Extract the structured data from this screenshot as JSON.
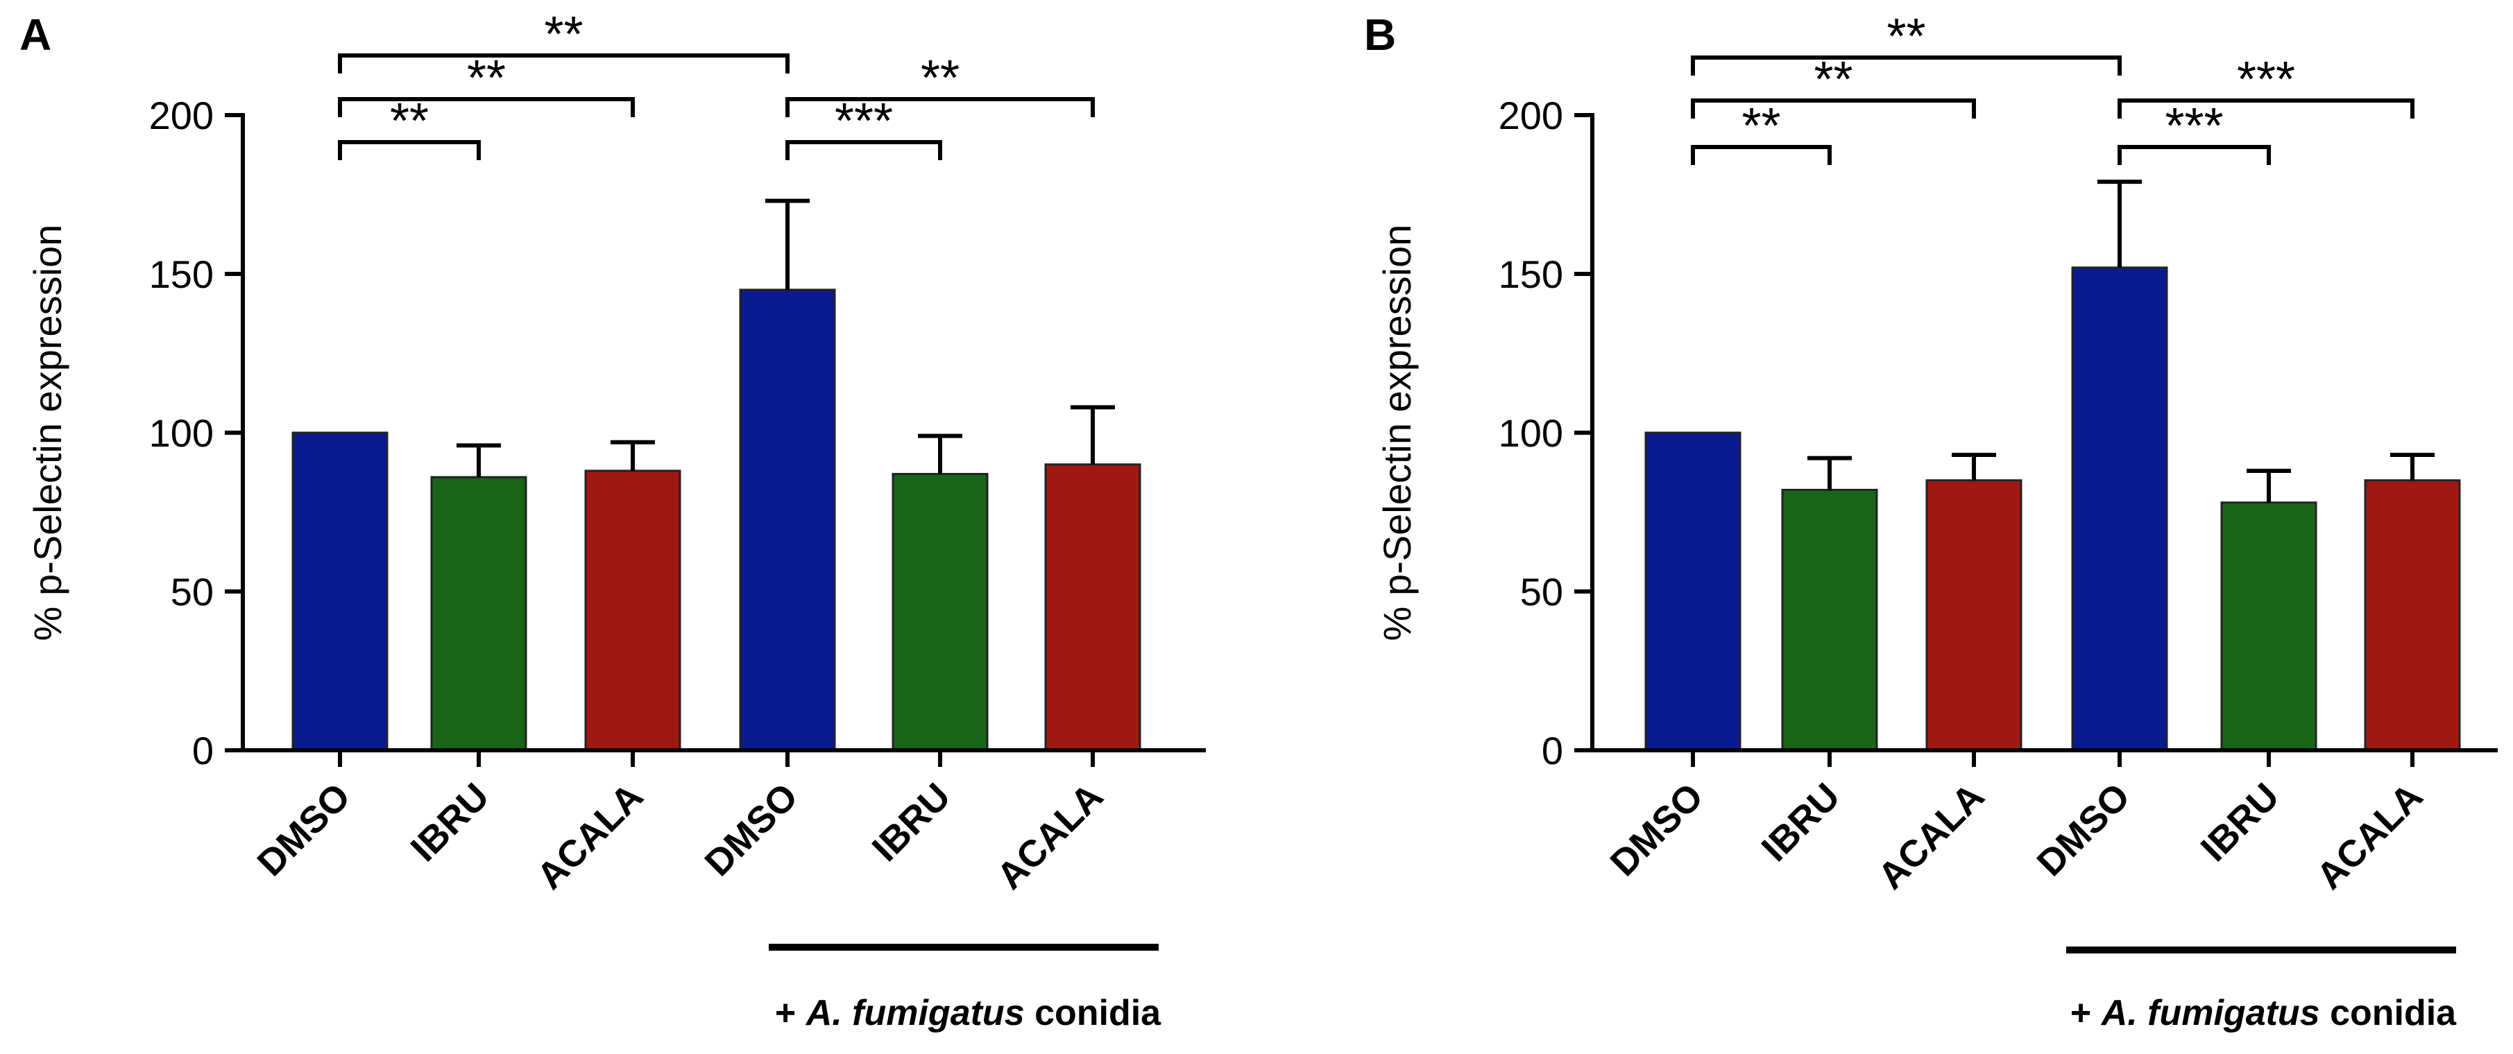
{
  "chart_data": [
    {
      "panel": "A",
      "type": "bar",
      "ylabel": "% p-Selectin expression",
      "ylim": [
        0,
        200
      ],
      "yticks": [
        0,
        50,
        100,
        150,
        200
      ],
      "categories": [
        "DMSO",
        "IBRU",
        "ACALA",
        "DMSO",
        "IBRU",
        "ACALA"
      ],
      "values": [
        100,
        86,
        88,
        145,
        87,
        90
      ],
      "errors": [
        0,
        10,
        9,
        28,
        12,
        18
      ],
      "colors": [
        "#0b1a8e",
        "#1a6418",
        "#a01812",
        "#0b1a8e",
        "#1a6418",
        "#a01812"
      ],
      "conidia_label": {
        "prefix": "+ ",
        "italic": "A. fumigatus",
        "suffix": " conidia"
      },
      "significance": [
        {
          "from": 0,
          "to": 3,
          "label": "**",
          "level": 4
        },
        {
          "from": 0,
          "to": 2,
          "label": "**",
          "level": 3
        },
        {
          "from": 0,
          "to": 1,
          "label": "**",
          "level": 2
        },
        {
          "from": 3,
          "to": 5,
          "label": "**",
          "level": 3
        },
        {
          "from": 3,
          "to": 4,
          "label": "***",
          "level": 2
        }
      ]
    },
    {
      "panel": "B",
      "type": "bar",
      "ylabel": "% p-Selectin expression",
      "ylim": [
        0,
        200
      ],
      "yticks": [
        0,
        50,
        100,
        150,
        200
      ],
      "categories": [
        "DMSO",
        "IBRU",
        "ACALA",
        "DMSO",
        "IBRU",
        "ACALA"
      ],
      "values": [
        100,
        82,
        85,
        152,
        78,
        85
      ],
      "errors": [
        0,
        10,
        8,
        27,
        10,
        8
      ],
      "colors": [
        "#0b1a8e",
        "#1a6418",
        "#a01812",
        "#0b1a8e",
        "#1a6418",
        "#a01812"
      ],
      "conidia_label": {
        "prefix": "+ ",
        "italic": "A. fumigatus",
        "suffix": " conidia"
      },
      "significance": [
        {
          "from": 0,
          "to": 3,
          "label": "**",
          "level": 4
        },
        {
          "from": 0,
          "to": 2,
          "label": "**",
          "level": 3
        },
        {
          "from": 0,
          "to": 1,
          "label": "**",
          "level": 2
        },
        {
          "from": 3,
          "to": 5,
          "label": "***",
          "level": 3
        },
        {
          "from": 3,
          "to": 4,
          "label": "***",
          "level": 2
        }
      ]
    }
  ]
}
